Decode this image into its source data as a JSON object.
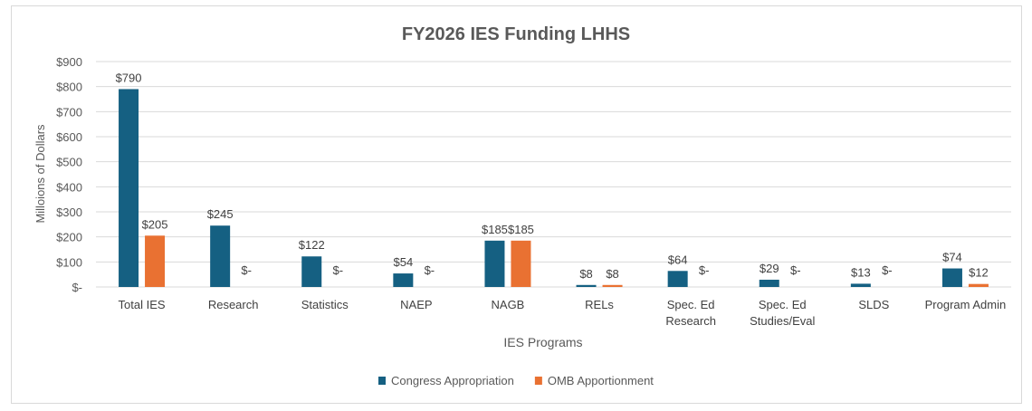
{
  "chart_data": {
    "type": "bar",
    "title": "FY2026 IES Funding LHHS",
    "xlabel": "IES Programs",
    "ylabel": "Milloions of Dollars",
    "ylim": [
      0,
      900
    ],
    "yticks": [
      0,
      100,
      200,
      300,
      400,
      500,
      600,
      700,
      800,
      900
    ],
    "ytick_labels": [
      "$-",
      "$100",
      "$200",
      "$300",
      "$400",
      "$500",
      "$600",
      "$700",
      "$800",
      "$900"
    ],
    "grid": true,
    "legend": "bottom",
    "categories": [
      [
        "Total IES"
      ],
      [
        "Research"
      ],
      [
        "Statistics"
      ],
      [
        "NAEP"
      ],
      [
        "NAGB"
      ],
      [
        "RELs"
      ],
      [
        "Spec. Ed",
        "Research"
      ],
      [
        "Spec. Ed",
        "Studies/Eval"
      ],
      [
        "SLDS"
      ],
      [
        "Program Admin"
      ]
    ],
    "series": [
      {
        "name": "Congress Appropriation",
        "color": "#156082",
        "values": [
          790,
          245,
          122,
          54,
          185,
          8,
          64,
          29,
          13,
          74
        ],
        "labels": [
          "$790",
          "$245",
          "$122",
          "$54",
          "$185",
          "$8",
          "$64",
          "$29",
          "$13",
          "$74"
        ]
      },
      {
        "name": "OMB Apportionment",
        "color": "#E97132",
        "values": [
          205,
          0,
          0,
          0,
          185,
          8,
          0,
          0,
          0,
          12
        ],
        "labels": [
          "$205",
          "$-",
          "$-",
          "$-",
          "$185",
          "$8",
          "$-",
          "$-",
          "$-",
          "$12"
        ]
      }
    ]
  }
}
